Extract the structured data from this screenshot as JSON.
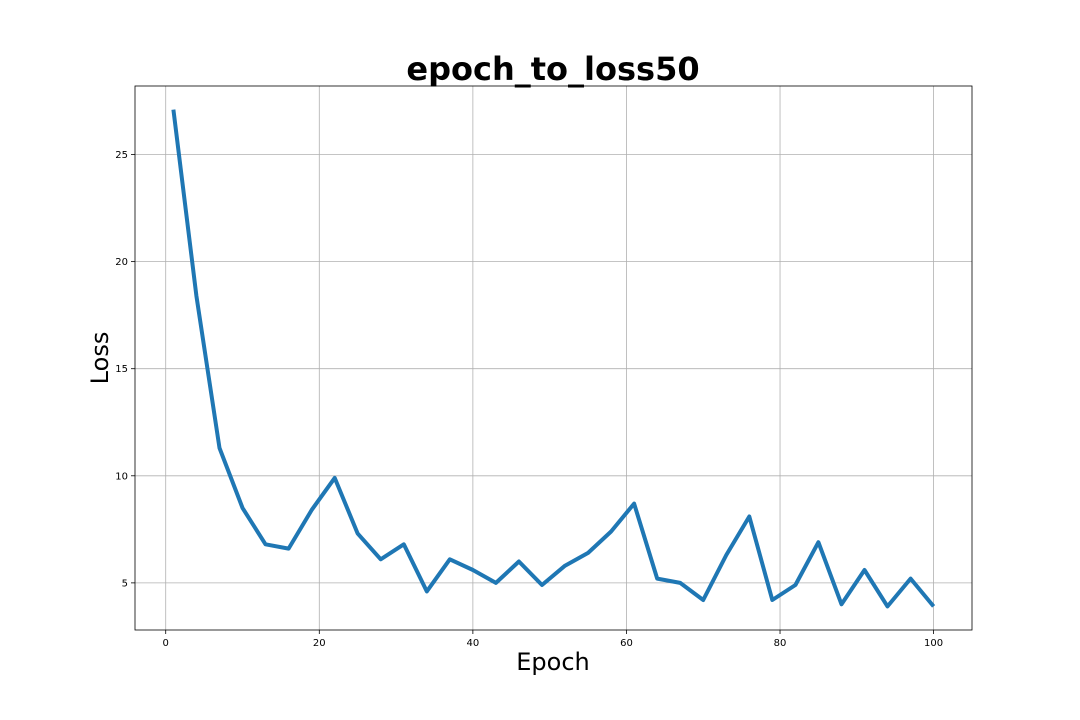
{
  "chart_data": {
    "type": "line",
    "title": "epoch_to_loss50",
    "xlabel": "Epoch",
    "ylabel": "Loss",
    "xlim": [
      -4,
      105
    ],
    "ylim": [
      2.8,
      28.2
    ],
    "xticks": [
      0,
      20,
      40,
      60,
      80,
      100
    ],
    "yticks": [
      5,
      10,
      15,
      20,
      25
    ],
    "grid": true,
    "line_color": "#1f77b4",
    "series": [
      {
        "x": [
          1,
          4,
          7,
          10,
          13,
          16,
          19,
          22,
          25,
          28,
          31,
          34,
          37,
          40,
          43,
          46,
          49,
          52,
          55,
          58,
          61,
          64,
          67,
          70,
          73,
          76,
          79,
          82,
          85,
          88,
          91,
          94,
          97,
          100
        ],
        "y": [
          27.1,
          18.4,
          11.3,
          8.5,
          6.8,
          6.6,
          8.4,
          9.9,
          7.3,
          6.1,
          6.8,
          4.6,
          6.1,
          5.6,
          5.0,
          6.0,
          4.9,
          5.8,
          6.4,
          7.4,
          8.7,
          5.2,
          5.0,
          4.2,
          6.3,
          8.1,
          4.2,
          4.9,
          6.9,
          4.0,
          5.6,
          3.9,
          5.2,
          3.9
        ]
      }
    ]
  }
}
